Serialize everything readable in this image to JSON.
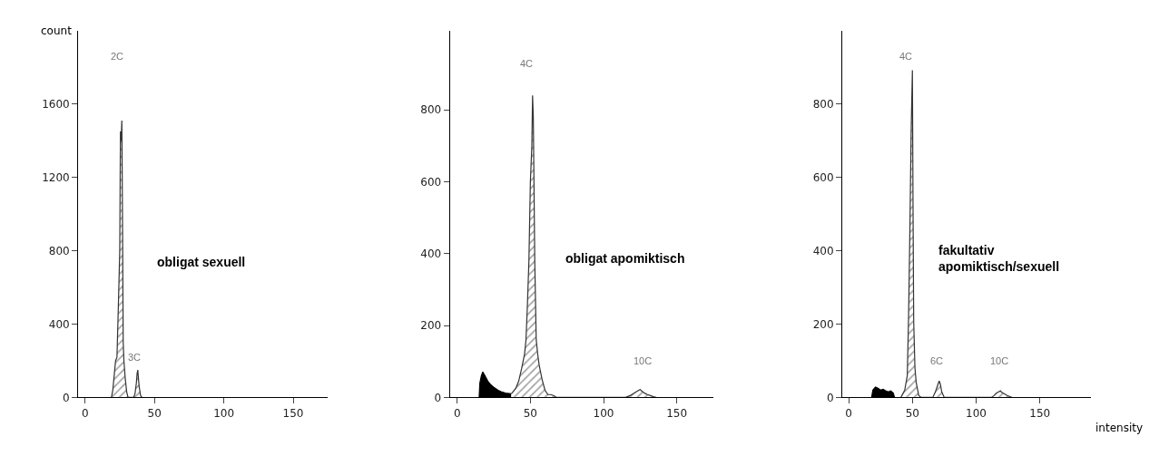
{
  "chart_data": [
    {
      "type": "area",
      "ylabel": "count",
      "xlim": [
        -5,
        175
      ],
      "ylim": [
        0,
        2000
      ],
      "xticks": [
        0,
        50,
        100,
        150
      ],
      "yticks": [
        0,
        400,
        800,
        1200,
        1600
      ],
      "series": [
        {
          "color": "#333333",
          "x": [
            19,
            20,
            21,
            22,
            23,
            24,
            25,
            25.5,
            26,
            26.5,
            27,
            27.5,
            28,
            29,
            30,
            31,
            35,
            36,
            37,
            37.5,
            38,
            38.5,
            39,
            40,
            41
          ],
          "values": [
            0,
            40,
            120,
            200,
            220,
            500,
            800,
            1450,
            1400,
            1510,
            950,
            300,
            200,
            100,
            30,
            0,
            0,
            20,
            80,
            130,
            150,
            100,
            60,
            10,
            0
          ]
        }
      ],
      "annotations": [
        "2C",
        "3C",
        "obligat sexuell"
      ]
    },
    {
      "type": "area",
      "xlim": [
        -5,
        175
      ],
      "ylim": [
        0,
        1020
      ],
      "xticks": [
        0,
        50,
        100,
        150
      ],
      "yticks": [
        0,
        200,
        400,
        600,
        800
      ],
      "series": [
        {
          "color": "#000000",
          "x": [
            15,
            15.5,
            16.5,
            17.5,
            19,
            21,
            23,
            25,
            28,
            30,
            33,
            37
          ],
          "values": [
            0,
            40,
            60,
            71,
            60,
            45,
            35,
            28,
            20,
            16,
            12,
            10
          ]
        },
        {
          "color": "#333333",
          "x": [
            37,
            40,
            42,
            44,
            46,
            47,
            48,
            49,
            50,
            51,
            51.5,
            52,
            53,
            54,
            55,
            56,
            58,
            60,
            62,
            64,
            66,
            68,
            115,
            118,
            120,
            122,
            124,
            125,
            126,
            128,
            130,
            132,
            134,
            136
          ],
          "values": [
            10,
            25,
            45,
            80,
            120,
            160,
            260,
            380,
            600,
            700,
            840,
            780,
            380,
            160,
            120,
            90,
            50,
            20,
            8,
            8,
            5,
            0,
            0,
            5,
            10,
            15,
            20,
            22,
            18,
            12,
            8,
            5,
            2,
            0
          ]
        }
      ],
      "annotations": [
        "4C",
        "10C",
        "obligat apomiktisch"
      ]
    },
    {
      "type": "area",
      "xlabel": "intensity",
      "xlim": [
        -5,
        190
      ],
      "ylim": [
        0,
        1000
      ],
      "xticks": [
        0,
        50,
        100,
        150
      ],
      "yticks": [
        0,
        200,
        400,
        600,
        800
      ],
      "series": [
        {
          "color": "#000000",
          "x": [
            18,
            19,
            21,
            23,
            25,
            27,
            29,
            31,
            33,
            35,
            36
          ],
          "values": [
            0,
            20,
            28,
            25,
            20,
            22,
            18,
            15,
            18,
            12,
            0
          ]
        },
        {
          "color": "#333333",
          "x": [
            41,
            44,
            46,
            47,
            48,
            49,
            49.5,
            50,
            50.5,
            51,
            52,
            53,
            55,
            57,
            66,
            68,
            70,
            71,
            72,
            73,
            75,
            112,
            114,
            116,
            118,
            119,
            120,
            122,
            124,
            126,
            128
          ],
          "values": [
            0,
            20,
            60,
            220,
            450,
            720,
            810,
            892,
            520,
            210,
            80,
            40,
            5,
            0,
            0,
            15,
            35,
            45,
            35,
            15,
            0,
            0,
            5,
            12,
            16,
            18,
            14,
            10,
            6,
            3,
            0
          ]
        }
      ],
      "annotations": [
        "4C",
        "6C",
        "10C",
        "fakultativ\napomiktisch/sexuell"
      ]
    }
  ]
}
